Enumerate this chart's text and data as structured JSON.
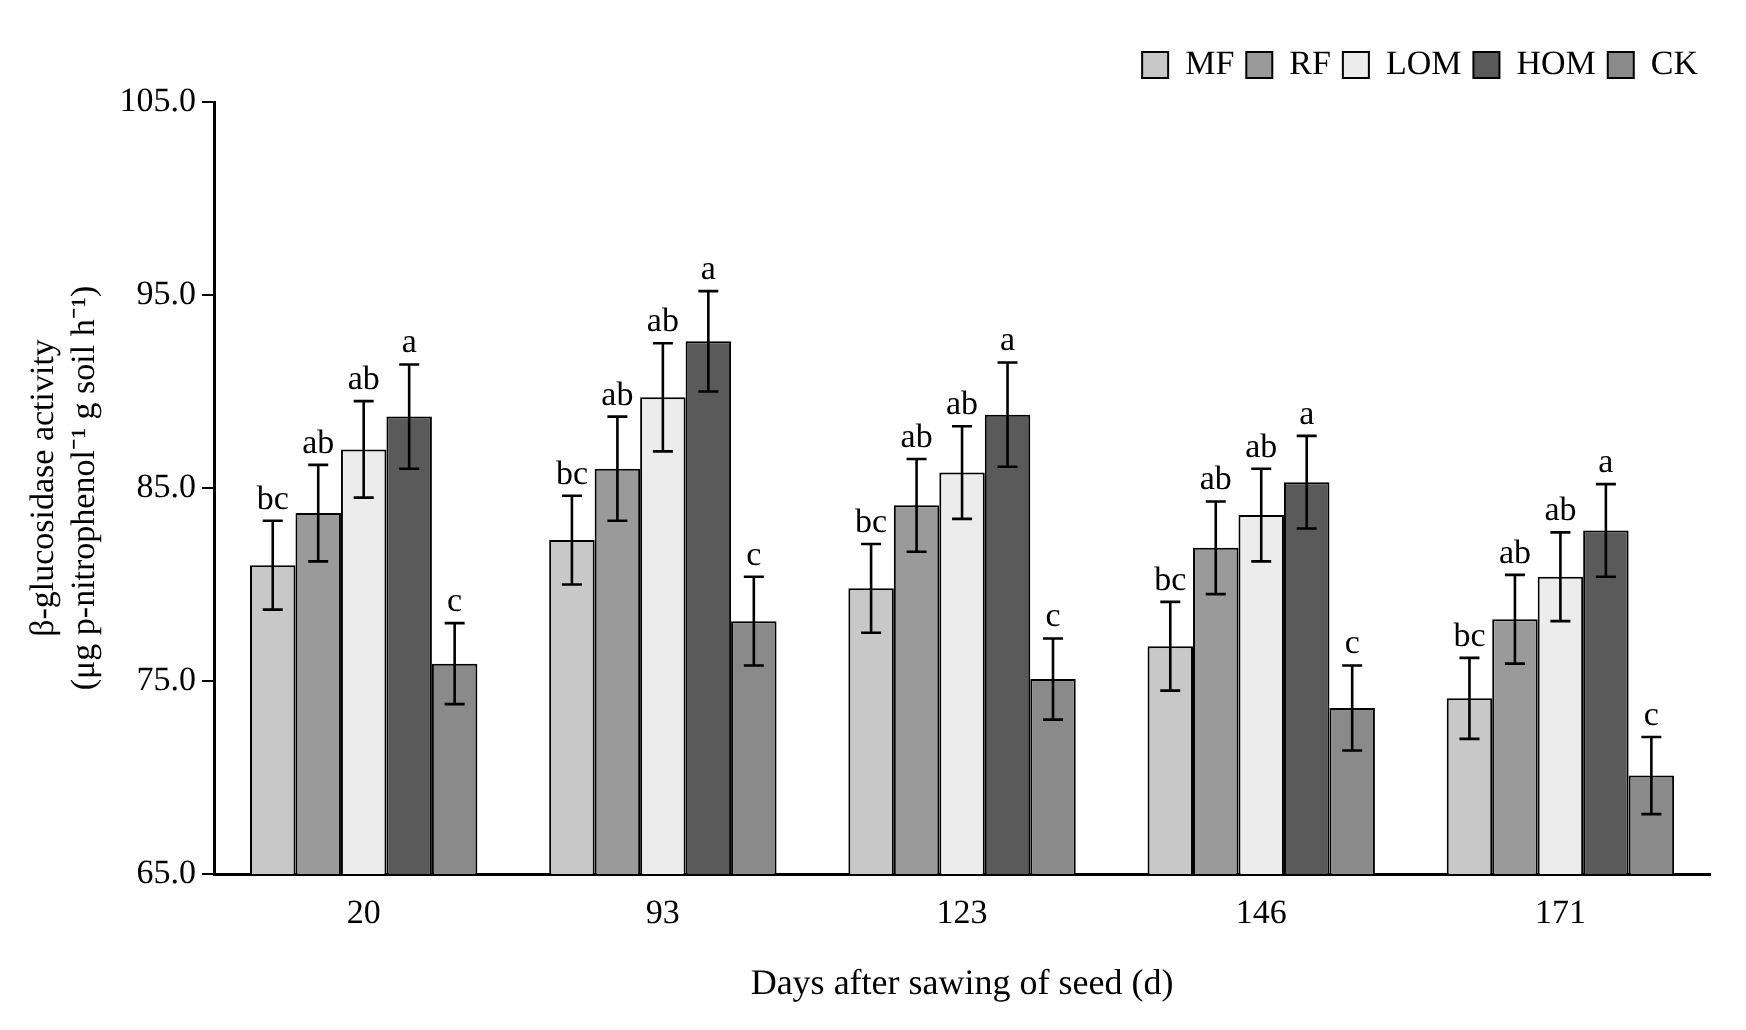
{
  "chart_data": {
    "type": "bar",
    "xlabel": "Days after sawing of seed (d)",
    "ylabel": "β-glucosidase activity\n(μg p-nitrophenol⁻¹ g soil h⁻¹)",
    "categories": [
      "20",
      "93",
      "123",
      "146",
      "171"
    ],
    "ylim": [
      65,
      105
    ],
    "yticks": [
      {
        "value": 65,
        "label": "65.0"
      },
      {
        "value": 75,
        "label": "75.0"
      },
      {
        "value": 85,
        "label": "85.0"
      },
      {
        "value": 95,
        "label": "95.0"
      },
      {
        "value": 105,
        "label": "105.0"
      }
    ],
    "grid": false,
    "legend": "top right",
    "series": [
      {
        "name": "MF",
        "color": "#c8c8c8",
        "values": [
          81.0,
          82.3,
          79.8,
          76.8,
          74.1
        ],
        "errors": [
          2.3,
          2.3,
          2.3,
          2.3,
          2.1
        ],
        "value_labels": [
          "bc",
          "bc",
          "bc",
          "bc",
          "bc"
        ]
      },
      {
        "name": "RF",
        "color": "#9a9a9a",
        "values": [
          83.7,
          86.0,
          84.1,
          81.9,
          78.2
        ],
        "errors": [
          2.5,
          2.7,
          2.4,
          2.4,
          2.3
        ],
        "value_labels": [
          "ab",
          "ab",
          "ab",
          "ab",
          "ab"
        ]
      },
      {
        "name": "LOM",
        "color": "#ececec",
        "values": [
          87.0,
          89.7,
          85.8,
          83.6,
          80.4
        ],
        "errors": [
          2.5,
          2.8,
          2.4,
          2.4,
          2.3
        ],
        "value_labels": [
          "ab",
          "ab",
          "ab",
          "ab",
          "ab"
        ]
      },
      {
        "name": "HOM",
        "color": "#5a5a5a",
        "values": [
          88.7,
          92.6,
          88.8,
          85.3,
          82.8
        ],
        "errors": [
          2.7,
          2.6,
          2.7,
          2.4,
          2.4
        ],
        "value_labels": [
          "a",
          "a",
          "a",
          "a",
          "a"
        ]
      },
      {
        "name": "CK",
        "color": "#8a8a8a",
        "values": [
          75.9,
          78.1,
          75.1,
          73.6,
          70.1
        ],
        "errors": [
          2.1,
          2.3,
          2.1,
          2.2,
          2.0
        ],
        "value_labels": [
          "c",
          "c",
          "c",
          "c",
          "c"
        ]
      }
    ]
  }
}
